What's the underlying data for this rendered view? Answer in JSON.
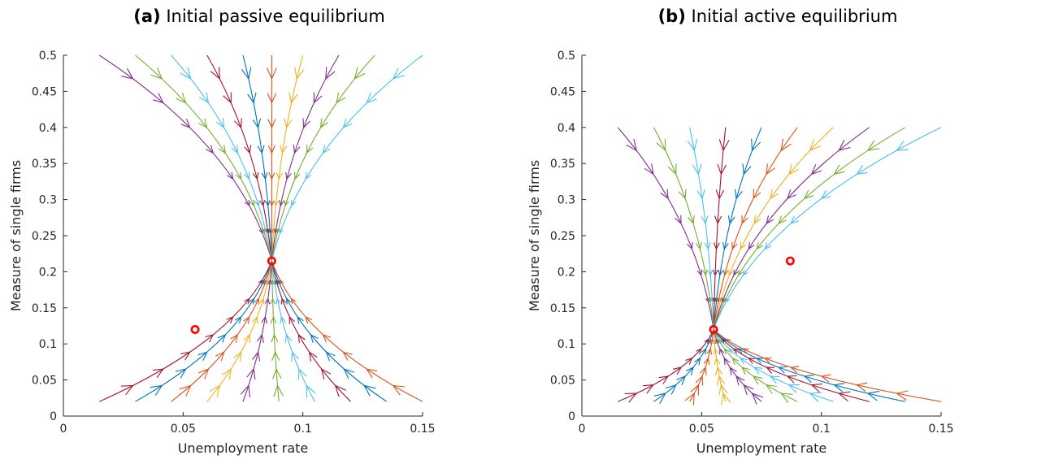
{
  "chart_data": [
    {
      "type": "line",
      "panel_tag": "(a)",
      "title": "Initial passive equilibrium",
      "xlabel": "Unemployment rate",
      "ylabel": "Measure of single firms",
      "xlim": [
        0,
        0.15
      ],
      "ylim": [
        0,
        0.5
      ],
      "xticks": [
        0,
        0.05,
        0.1,
        0.15
      ],
      "xtick_labels": [
        "0",
        "0.05",
        "0.1",
        "0.15"
      ],
      "yticks": [
        0,
        0.05,
        0.1,
        0.15,
        0.2,
        0.25,
        0.3,
        0.35,
        0.4,
        0.45,
        0.5
      ],
      "ytick_labels": [
        "0",
        "0.05",
        "0.1",
        "0.15",
        "0.2",
        "0.25",
        "0.3",
        "0.35",
        "0.4",
        "0.45",
        "0.5"
      ],
      "grid": false,
      "legend": "none",
      "stable_point": [
        0.087,
        0.215
      ],
      "unstable_point": [
        0.055,
        0.12
      ],
      "colors": [
        "#7E2F8E",
        "#77AC30",
        "#4DBEEE",
        "#A2142F",
        "#0072BD",
        "#D95319",
        "#EDB120"
      ],
      "top_starts": [
        [
          0.015,
          0.5
        ],
        [
          0.03,
          0.5
        ],
        [
          0.045,
          0.5
        ],
        [
          0.06,
          0.5
        ],
        [
          0.075,
          0.5
        ],
        [
          0.087,
          0.5
        ],
        [
          0.1,
          0.5
        ],
        [
          0.115,
          0.5
        ],
        [
          0.13,
          0.5
        ],
        [
          0.15,
          0.5
        ]
      ],
      "bottom_starts": [
        [
          0.015,
          0.02
        ],
        [
          0.03,
          0.02
        ],
        [
          0.045,
          0.02
        ],
        [
          0.06,
          0.02
        ],
        [
          0.075,
          0.02
        ],
        [
          0.09,
          0.02
        ],
        [
          0.105,
          0.02
        ],
        [
          0.12,
          0.02
        ],
        [
          0.135,
          0.02
        ],
        [
          0.15,
          0.02
        ]
      ]
    },
    {
      "type": "line",
      "panel_tag": "(b)",
      "title": "Initial active equilibrium",
      "xlabel": "Unemployment rate",
      "ylabel": "Measure of single firms",
      "xlim": [
        0,
        0.15
      ],
      "ylim": [
        0,
        0.5
      ],
      "xticks": [
        0,
        0.05,
        0.1,
        0.15
      ],
      "xtick_labels": [
        "0",
        "0.05",
        "0.1",
        "0.15"
      ],
      "yticks": [
        0,
        0.05,
        0.1,
        0.15,
        0.2,
        0.25,
        0.3,
        0.35,
        0.4,
        0.45,
        0.5
      ],
      "ytick_labels": [
        "0",
        "0.05",
        "0.1",
        "0.15",
        "0.2",
        "0.25",
        "0.3",
        "0.35",
        "0.4",
        "0.45",
        "0.5"
      ],
      "grid": false,
      "legend": "none",
      "stable_point": [
        0.055,
        0.12
      ],
      "unstable_point": [
        0.087,
        0.215
      ],
      "colors": [
        "#7E2F8E",
        "#77AC30",
        "#4DBEEE",
        "#A2142F",
        "#0072BD",
        "#D95319",
        "#EDB120"
      ],
      "top_starts": [
        [
          0.015,
          0.4
        ],
        [
          0.03,
          0.4
        ],
        [
          0.045,
          0.4
        ],
        [
          0.06,
          0.4
        ],
        [
          0.075,
          0.4
        ],
        [
          0.09,
          0.4
        ],
        [
          0.105,
          0.4
        ],
        [
          0.12,
          0.4
        ],
        [
          0.135,
          0.4
        ],
        [
          0.15,
          0.4
        ]
      ],
      "bottom_starts": [
        [
          0.015,
          0.02
        ],
        [
          0.03,
          0.02
        ],
        [
          0.045,
          0.02
        ],
        [
          0.06,
          0.02
        ],
        [
          0.075,
          0.02
        ],
        [
          0.09,
          0.02
        ],
        [
          0.105,
          0.02
        ],
        [
          0.12,
          0.02
        ],
        [
          0.135,
          0.02
        ],
        [
          0.15,
          0.02
        ]
      ]
    }
  ]
}
